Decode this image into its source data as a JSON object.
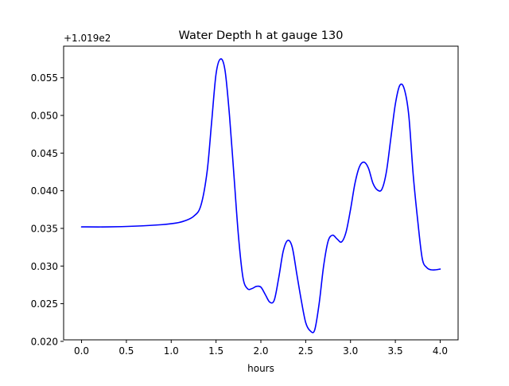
{
  "chart_data": {
    "type": "line",
    "title": "Water Depth h at gauge 130",
    "xlabel": "hours",
    "ylabel": "",
    "y_offset_label": "+1.019e2",
    "xlim": [
      -0.2,
      4.2
    ],
    "ylim": [
      0.0202,
      0.0592
    ],
    "xticks": [
      0.0,
      0.5,
      1.0,
      1.5,
      2.0,
      2.5,
      3.0,
      3.5,
      4.0
    ],
    "xtick_labels": [
      "0.0",
      "0.5",
      "1.0",
      "1.5",
      "2.0",
      "2.5",
      "3.0",
      "3.5",
      "4.0"
    ],
    "yticks": [
      0.02,
      0.025,
      0.03,
      0.035,
      0.04,
      0.045,
      0.05,
      0.055
    ],
    "ytick_labels": [
      "0.020",
      "0.025",
      "0.030",
      "0.035",
      "0.040",
      "0.045",
      "0.050",
      "0.055"
    ],
    "grid": false,
    "line_color": "#0000ff",
    "series": [
      {
        "x": [
          0.0,
          0.3,
          0.6,
          0.9,
          1.05,
          1.15,
          1.25,
          1.33,
          1.4,
          1.45,
          1.5,
          1.55,
          1.6,
          1.65,
          1.7,
          1.75,
          1.8,
          1.85,
          1.9,
          1.95,
          2.0,
          2.05,
          2.1,
          2.15,
          2.2,
          2.25,
          2.3,
          2.35,
          2.4,
          2.45,
          2.5,
          2.55,
          2.6,
          2.65,
          2.7,
          2.75,
          2.8,
          2.85,
          2.9,
          2.95,
          3.0,
          3.05,
          3.1,
          3.15,
          3.2,
          3.25,
          3.3,
          3.35,
          3.4,
          3.45,
          3.5,
          3.55,
          3.6,
          3.65,
          3.7,
          3.75,
          3.8,
          3.85,
          3.9,
          3.95,
          4.0
        ],
        "y": [
          0.0352,
          0.0352,
          0.0353,
          0.0355,
          0.0357,
          0.036,
          0.0366,
          0.038,
          0.0425,
          0.049,
          0.0555,
          0.0575,
          0.056,
          0.05,
          0.042,
          0.034,
          0.0285,
          0.027,
          0.027,
          0.0273,
          0.0272,
          0.0262,
          0.0252,
          0.0255,
          0.0285,
          0.032,
          0.0334,
          0.0325,
          0.029,
          0.0255,
          0.0225,
          0.0214,
          0.0215,
          0.025,
          0.03,
          0.0333,
          0.0341,
          0.0336,
          0.0332,
          0.0345,
          0.0375,
          0.041,
          0.0432,
          0.0438,
          0.043,
          0.041,
          0.0401,
          0.0402,
          0.0425,
          0.047,
          0.0515,
          0.054,
          0.0535,
          0.05,
          0.042,
          0.036,
          0.031,
          0.0298,
          0.0295,
          0.0295,
          0.0296
        ]
      }
    ]
  }
}
